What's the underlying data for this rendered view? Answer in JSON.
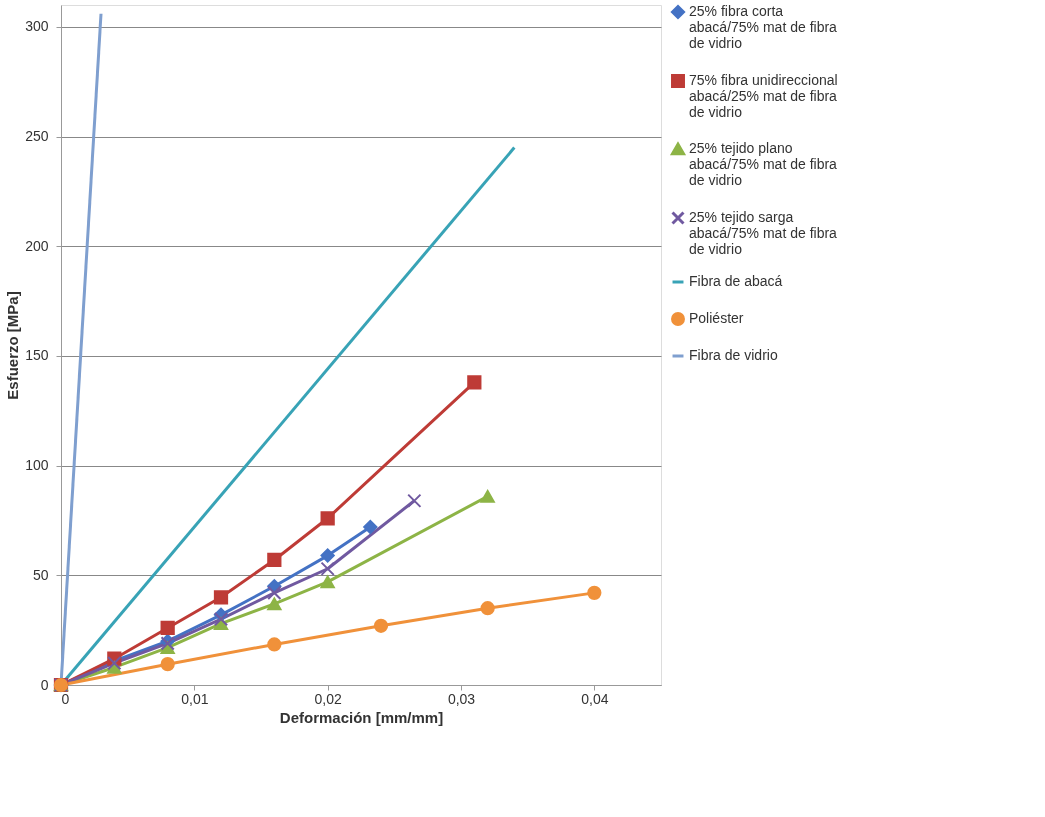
{
  "chart_data": {
    "type": "line",
    "xlabel": "Deformación [mm/mm]",
    "ylabel": "Esfuerzo [MPa]",
    "xlim": [
      0,
      0.045
    ],
    "ylim": [
      0,
      310
    ],
    "xticks": [
      0,
      {
        "value": 0.01,
        "label": "0,01"
      },
      {
        "value": 0.02,
        "label": "0,02"
      },
      {
        "value": 0.03,
        "label": "0,03"
      },
      {
        "value": 0.04,
        "label": "0,04"
      }
    ],
    "yticks": [
      0,
      50,
      100,
      150,
      200,
      250,
      300
    ],
    "grid": "y",
    "legend": "right",
    "series": [
      {
        "name": "25% fibra corta abacá/75% mat de fibra de vidrio",
        "color": "#4472c4",
        "marker": "diamond",
        "x": [
          0,
          0.004,
          0.008,
          0.012,
          0.016,
          0.02,
          0.0232
        ],
        "values": [
          0,
          11,
          20,
          32,
          45,
          59,
          72
        ]
      },
      {
        "name": "75% fibra unidireccional abacá/25% mat de fibra de vidrio",
        "color": "#be3b36",
        "marker": "square",
        "x": [
          0,
          0.004,
          0.008,
          0.012,
          0.016,
          0.02,
          0.031
        ],
        "values": [
          0,
          12,
          26,
          40,
          57,
          76,
          138
        ]
      },
      {
        "name": "25% tejido plano abacá/75% mat de fibra de vidrio",
        "color": "#8db446",
        "marker": "triangle",
        "x": [
          0,
          0.004,
          0.008,
          0.012,
          0.016,
          0.02,
          0.032
        ],
        "values": [
          0,
          8,
          17,
          28,
          37,
          47,
          86
        ]
      },
      {
        "name": "25% tejido sarga abacá/75% mat de fibra de vidrio",
        "color": "#7059a0",
        "marker": "cross",
        "x": [
          0,
          0.004,
          0.008,
          0.012,
          0.016,
          0.02,
          0.0265
        ],
        "values": [
          0,
          10,
          19,
          30,
          42,
          53,
          84
        ]
      },
      {
        "name": "Fibra de abacá",
        "color": "#38a3b6",
        "marker": "none",
        "x": [
          0,
          0.034
        ],
        "values": [
          0,
          245
        ]
      },
      {
        "name": "Poliéster",
        "color": "#f0913a",
        "marker": "circle",
        "x": [
          0,
          0.008,
          0.016,
          0.024,
          0.032,
          0.04
        ],
        "values": [
          0,
          9.5,
          18.5,
          27,
          35,
          42
        ]
      },
      {
        "name": "Fibra de vidrio",
        "color": "#7f9fcf",
        "marker": "none",
        "x": [
          0,
          0.003
        ],
        "values": [
          0,
          306
        ]
      }
    ]
  }
}
